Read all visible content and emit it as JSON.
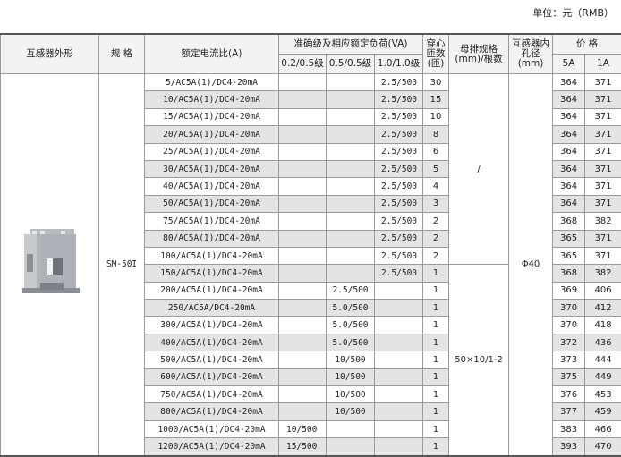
{
  "unit_label": "单位：元（RMB）",
  "headers": {
    "shape": "互感器外形",
    "spec": "规 格",
    "ratio": "额定电流比(A)",
    "accuracy": "准确级及相应额定负荷(VA)",
    "acc_02": "0.2/0.5级",
    "acc_05": "0.5/0.5级",
    "acc_10": "1.0/1.0级",
    "turns": "穿心匝数(匝)",
    "busbar": "母排规格(mm)/根数",
    "hole": "互感器内孔径(mm)",
    "price": "价 格",
    "p5a": "5A",
    "p1a": "1A"
  },
  "product": {
    "image": "current-transformer-photo",
    "model": "SM-50I",
    "hole_diameter": "Φ40"
  },
  "busbar_groups": [
    "/",
    "50×10/1-2"
  ],
  "rows": [
    {
      "ratio": "5/AC5A(1)/DC4-20mA",
      "a02": "",
      "a05": "",
      "a10": "2.5/500",
      "turns": "30",
      "p5a": "364",
      "p1a": "371"
    },
    {
      "ratio": "10/AC5A(1)/DC4-20mA",
      "a02": "",
      "a05": "",
      "a10": "2.5/500",
      "turns": "15",
      "p5a": "364",
      "p1a": "371"
    },
    {
      "ratio": "15/AC5A(1)/DC4-20mA",
      "a02": "",
      "a05": "",
      "a10": "2.5/500",
      "turns": "10",
      "p5a": "364",
      "p1a": "371"
    },
    {
      "ratio": "20/AC5A(1)/DC4-20mA",
      "a02": "",
      "a05": "",
      "a10": "2.5/500",
      "turns": "8",
      "p5a": "364",
      "p1a": "371"
    },
    {
      "ratio": "25/AC5A(1)/DC4-20mA",
      "a02": "",
      "a05": "",
      "a10": "2.5/500",
      "turns": "6",
      "p5a": "364",
      "p1a": "371"
    },
    {
      "ratio": "30/AC5A(1)/DC4-20mA",
      "a02": "",
      "a05": "",
      "a10": "2.5/500",
      "turns": "5",
      "p5a": "364",
      "p1a": "371"
    },
    {
      "ratio": "40/AC5A(1)/DC4-20mA",
      "a02": "",
      "a05": "",
      "a10": "2.5/500",
      "turns": "4",
      "p5a": "364",
      "p1a": "371"
    },
    {
      "ratio": "50/AC5A(1)/DC4-20mA",
      "a02": "",
      "a05": "",
      "a10": "2.5/500",
      "turns": "3",
      "p5a": "364",
      "p1a": "371"
    },
    {
      "ratio": "75/AC5A(1)/DC4-20mA",
      "a02": "",
      "a05": "",
      "a10": "2.5/500",
      "turns": "2",
      "p5a": "368",
      "p1a": "382"
    },
    {
      "ratio": "80/AC5A(1)/DC4-20mA",
      "a02": "",
      "a05": "",
      "a10": "2.5/500",
      "turns": "2",
      "p5a": "365",
      "p1a": "371"
    },
    {
      "ratio": "100/AC5A(1)/DC4-20mA",
      "a02": "",
      "a05": "",
      "a10": "2.5/500",
      "turns": "2",
      "p5a": "365",
      "p1a": "371"
    },
    {
      "ratio": "150/AC5A(1)/DC4-20mA",
      "a02": "",
      "a05": "",
      "a10": "2.5/500",
      "turns": "1",
      "p5a": "368",
      "p1a": "382"
    },
    {
      "ratio": "200/AC5A(1)/DC4-20mA",
      "a02": "",
      "a05": "2.5/500",
      "a10": "",
      "turns": "1",
      "p5a": "369",
      "p1a": "406"
    },
    {
      "ratio": "250/AC5A/DC4-20mA",
      "a02": "",
      "a05": "5.0/500",
      "a10": "",
      "turns": "1",
      "p5a": "370",
      "p1a": "412"
    },
    {
      "ratio": "300/AC5A(1)/DC4-20mA",
      "a02": "",
      "a05": "5.0/500",
      "a10": "",
      "turns": "1",
      "p5a": "370",
      "p1a": "418"
    },
    {
      "ratio": "400/AC5A(1)/DC4-20mA",
      "a02": "",
      "a05": "5.0/500",
      "a10": "",
      "turns": "1",
      "p5a": "372",
      "p1a": "436"
    },
    {
      "ratio": "500/AC5A(1)/DC4-20mA",
      "a02": "",
      "a05": "10/500",
      "a10": "",
      "turns": "1",
      "p5a": "373",
      "p1a": "444"
    },
    {
      "ratio": "600/AC5A(1)/DC4-20mA",
      "a02": "",
      "a05": "10/500",
      "a10": "",
      "turns": "1",
      "p5a": "375",
      "p1a": "449"
    },
    {
      "ratio": "750/AC5A(1)/DC4-20mA",
      "a02": "",
      "a05": "10/500",
      "a10": "",
      "turns": "1",
      "p5a": "376",
      "p1a": "453"
    },
    {
      "ratio": "800/AC5A(1)/DC4-20mA",
      "a02": "",
      "a05": "10/500",
      "a10": "",
      "turns": "1",
      "p5a": "377",
      "p1a": "459"
    },
    {
      "ratio": "1000/AC5A(1)/DC4-20mA",
      "a02": "10/500",
      "a05": "",
      "a10": "",
      "turns": "1",
      "p5a": "383",
      "p1a": "466"
    },
    {
      "ratio": "1200/AC5A(1)/DC4-20mA",
      "a02": "15/500",
      "a05": "",
      "a10": "",
      "turns": "1",
      "p5a": "393",
      "p1a": "470"
    }
  ]
}
